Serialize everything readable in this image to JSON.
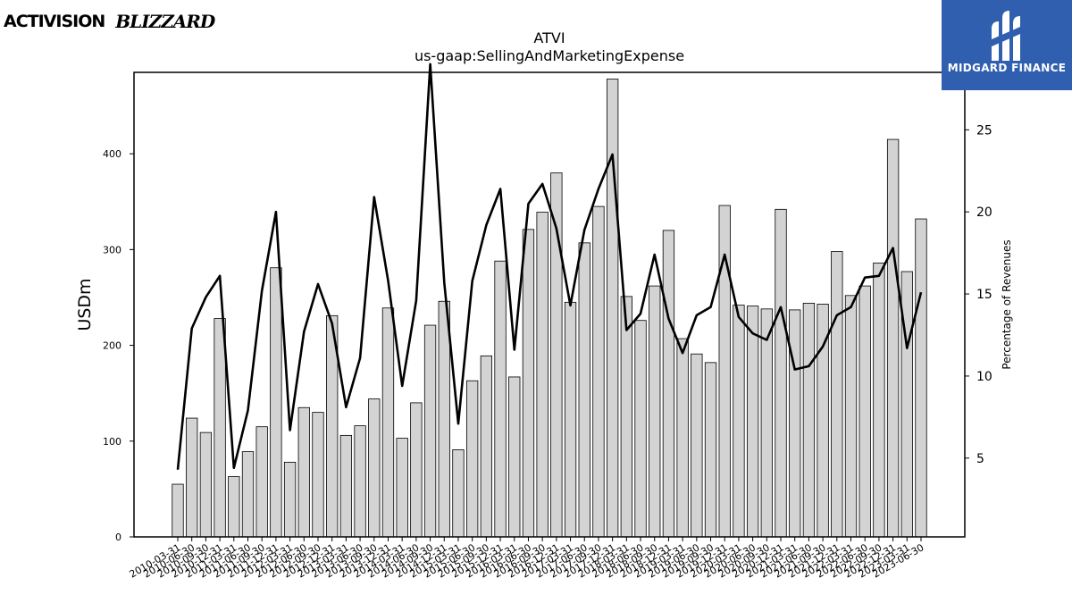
{
  "header": {
    "left_logo_primary": "ACTIVISION",
    "left_logo_secondary": "BLIZZARD",
    "right_logo_name": "MIDGARD FINANCE"
  },
  "chart_data": {
    "type": "bar",
    "title": "ATVI",
    "subtitle": "us-gaap:SellingAndMarketingExpense",
    "ylabel": "USDm",
    "y2label": "Percentage of Revenues",
    "ylim": [
      0,
      485
    ],
    "y2lim": [
      0.2,
      28.5
    ],
    "yticks": [
      0,
      100,
      200,
      300,
      400
    ],
    "y2ticks": [
      5,
      10,
      15,
      20,
      25
    ],
    "grid": false,
    "categories": [
      "2010-03-31",
      "2010-06-30",
      "2010-09-30",
      "2010-12-31",
      "2011-03-31",
      "2011-06-30",
      "2011-09-30",
      "2011-12-31",
      "2012-03-31",
      "2012-06-30",
      "2012-09-30",
      "2012-12-31",
      "2013-03-31",
      "2013-06-30",
      "2013-09-30",
      "2013-12-31",
      "2014-03-31",
      "2014-06-30",
      "2014-09-30",
      "2014-12-31",
      "2015-03-31",
      "2015-06-30",
      "2015-09-30",
      "2015-12-31",
      "2016-03-31",
      "2016-06-30",
      "2016-09-30",
      "2016-12-31",
      "2017-03-31",
      "2017-06-30",
      "2017-09-30",
      "2017-12-31",
      "2018-03-31",
      "2018-06-30",
      "2018-09-30",
      "2018-12-31",
      "2019-03-31",
      "2019-06-30",
      "2019-09-30",
      "2019-12-31",
      "2020-03-31",
      "2020-06-30",
      "2020-09-30",
      "2020-12-31",
      "2021-03-31",
      "2021-06-30",
      "2021-09-30",
      "2021-12-31",
      "2022-03-31",
      "2022-06-30",
      "2022-09-30",
      "2022-12-31",
      "2023-03-31",
      "2023-06-30"
    ],
    "series": [
      {
        "type": "bar",
        "axis": "left",
        "color": "#d3d3d3",
        "values": [
          55,
          124,
          109,
          228,
          63,
          89,
          115,
          281,
          78,
          135,
          130,
          231,
          106,
          116,
          144,
          239,
          103,
          140,
          221,
          246,
          91,
          163,
          189,
          288,
          167,
          321,
          339,
          380,
          245,
          307,
          345,
          478,
          251,
          226,
          262,
          320,
          207,
          191,
          182,
          346,
          242,
          241,
          238,
          342,
          237,
          244,
          243,
          298,
          252,
          262,
          286,
          415,
          277,
          332
        ]
      },
      {
        "type": "line",
        "axis": "right",
        "color": "#000000",
        "values": [
          4.3,
          12.9,
          14.8,
          16.1,
          4.4,
          7.9,
          15.2,
          20.0,
          6.7,
          12.7,
          15.6,
          13.2,
          8.1,
          11.1,
          20.9,
          15.8,
          9.4,
          14.6,
          29.0,
          15.7,
          7.1,
          15.8,
          19.2,
          21.4,
          11.6,
          20.5,
          21.7,
          19.0,
          14.3,
          18.9,
          21.4,
          23.5,
          12.8,
          13.8,
          17.4,
          13.5,
          11.4,
          13.7,
          14.2,
          17.4,
          13.6,
          12.6,
          12.2,
          14.2,
          10.4,
          10.6,
          11.8,
          13.7,
          14.2,
          16.0,
          16.1,
          17.8,
          11.7,
          15.1
        ]
      }
    ]
  }
}
